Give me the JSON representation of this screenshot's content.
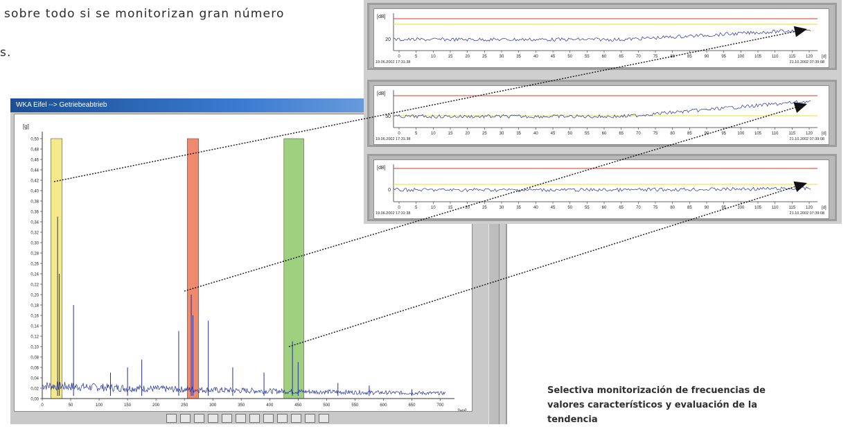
{
  "intro": {
    "line1": "sobre todo si se monitorizan gran número",
    "line2": "s."
  },
  "caption": {
    "lines": [
      "Selectiva monitorización de frecuencias de",
      "valores característicos y evaluación de la",
      "tendencia"
    ]
  },
  "spectrum_window": {
    "title": "WKA Eifel --> Getriebeabtrieb",
    "y_unit": "[g]",
    "x_unit": "[Hz]",
    "y_ticks": [
      "0,00",
      "0,02",
      "0,04",
      "0,06",
      "0,08",
      "0,10",
      "0,12",
      "0,14",
      "0,16",
      "0,18",
      "0,20",
      "0,22",
      "0,24",
      "0,26",
      "0,28",
      "0,30",
      "0,32",
      "0,34",
      "0,36",
      "0,38",
      "0,40",
      "0,42",
      "0,44",
      "0,46",
      "0,48",
      "0,50"
    ],
    "x_ticks": [
      "0",
      "50",
      "100",
      "150",
      "200",
      "250",
      "300",
      "350",
      "400",
      "450",
      "500",
      "550",
      "600",
      "650",
      "700"
    ],
    "bands": [
      {
        "name": "yellow-band",
        "from_hz": 15,
        "to_hz": 35,
        "color": "#f3e88a"
      },
      {
        "name": "red-band",
        "from_hz": 255,
        "to_hz": 275,
        "color": "#f08a6c"
      },
      {
        "name": "green-band",
        "from_hz": 425,
        "to_hz": 460,
        "color": "#9fd07f"
      }
    ],
    "toolbar_icons": [
      "pointer-icon",
      "fit-icon",
      "zoom-in-icon",
      "zoom-out-icon",
      "cursor-icon",
      "measure-icon",
      "pan-icon",
      "prev-icon",
      "next-icon",
      "grid-icon",
      "table-icon",
      "window-icon"
    ]
  },
  "trend_panels": [
    {
      "name": "trend-panel-1",
      "y_unit": "[dB]",
      "y_tick": "20",
      "start": "19.06.2002 17:31:38",
      "end": "21.10.2002 07:39:08",
      "x_unit": "[d]"
    },
    {
      "name": "trend-panel-2",
      "y_unit": "[dB]",
      "y_tick": "50",
      "start": "19.06.2002 17:31:38",
      "end": "21.10.2002 07:39:08",
      "x_unit": "[d]"
    },
    {
      "name": "trend-panel-3",
      "y_unit": "[dB]",
      "y_tick": "0",
      "start": "19.06.2002 17:31:38",
      "end": "21.10.2002 07:39:08",
      "x_unit": "[d]"
    }
  ],
  "trend_x_ticks": [
    "0",
    "5",
    "10",
    "15",
    "20",
    "25",
    "30",
    "35",
    "40",
    "45",
    "50",
    "55",
    "60",
    "65",
    "70",
    "75",
    "80",
    "85",
    "90",
    "95",
    "100",
    "105",
    "110",
    "115",
    "120"
  ],
  "colors": {
    "alarm_line": "#e0342a",
    "warning_line": "#e6e02a",
    "signal": "#1f2f9e",
    "connector": "#111111"
  }
}
